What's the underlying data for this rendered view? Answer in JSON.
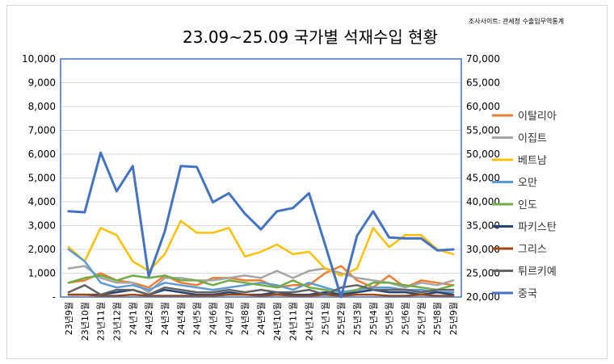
{
  "chart_data": {
    "type": "line",
    "title": "23.09~25.09 국가별 석재수입 현황",
    "source_note": "조사사이트: 관세청 수출입무역통계",
    "categories": [
      "23년9월",
      "23년10월",
      "23년11월",
      "23년12월",
      "24년1월",
      "24년2월",
      "24년3월",
      "24년4월",
      "24년5월",
      "24년6월",
      "24년7월",
      "24년8월",
      "24년9월",
      "24년10월",
      "24년11월",
      "24년12월",
      "25년1월",
      "25년2월",
      "25년3월",
      "25년4월",
      "25년5월",
      "25년6월",
      "25년7월",
      "25년8월",
      "25년9월"
    ],
    "y_left": {
      "min": 0,
      "max": 10000,
      "step": 1000,
      "ticks": [
        "-",
        "1,000",
        "2,000",
        "3,000",
        "4,000",
        "5,000",
        "6,000",
        "7,000",
        "8,000",
        "9,000",
        "10,000"
      ]
    },
    "y_right": {
      "min": 20000,
      "max": 70000,
      "step": 5000,
      "ticks": [
        "20,000",
        "25,000",
        "30,000",
        "35,000",
        "40,000",
        "45,000",
        "50,000",
        "55,000",
        "60,000",
        "65,000",
        "70,000"
      ]
    },
    "legend_position": "right",
    "series": [
      {
        "name": "이탈리아",
        "color": "#ED7D31",
        "axis": "left",
        "values": [
          600,
          700,
          1000,
          700,
          600,
          400,
          900,
          600,
          500,
          800,
          800,
          700,
          700,
          400,
          500,
          500,
          1000,
          1300,
          700,
          400,
          900,
          400,
          700,
          600,
          500
        ]
      },
      {
        "name": "이집트",
        "color": "#A5A5A5",
        "axis": "left",
        "values": [
          1200,
          1300,
          800,
          600,
          600,
          200,
          800,
          800,
          700,
          700,
          800,
          900,
          800,
          1100,
          800,
          1100,
          1200,
          1000,
          800,
          700,
          600,
          400,
          600,
          500,
          700
        ]
      },
      {
        "name": "베트남",
        "color": "#FFC000",
        "axis": "left",
        "values": [
          2100,
          1500,
          2900,
          2600,
          1500,
          1100,
          1800,
          3200,
          2700,
          2700,
          2900,
          1700,
          1900,
          2200,
          1800,
          1900,
          1200,
          900,
          1200,
          2900,
          2100,
          2600,
          2600,
          2000,
          1800
        ]
      },
      {
        "name": "오만",
        "color": "#5B9BD5",
        "axis": "left",
        "values": [
          2000,
          1500,
          600,
          400,
          500,
          300,
          600,
          500,
          400,
          300,
          400,
          500,
          600,
          500,
          300,
          600,
          400,
          200,
          300,
          400,
          400,
          300,
          300,
          200,
          200
        ]
      },
      {
        "name": "인도",
        "color": "#70AD47",
        "axis": "left",
        "values": [
          600,
          800,
          900,
          700,
          900,
          800,
          900,
          700,
          700,
          500,
          700,
          600,
          500,
          400,
          700,
          400,
          300,
          100,
          300,
          600,
          600,
          500,
          400,
          300,
          500
        ]
      },
      {
        "name": "파키스탄",
        "color": "#264478",
        "axis": "left",
        "values": [
          100,
          100,
          100,
          200,
          300,
          100,
          300,
          200,
          100,
          100,
          200,
          100,
          100,
          200,
          100,
          100,
          200,
          100,
          200,
          300,
          200,
          200,
          100,
          200,
          100
        ]
      },
      {
        "name": "그리스",
        "color": "#9E480E",
        "axis": "left",
        "values": [
          100,
          100,
          50,
          50,
          100,
          50,
          50,
          50,
          50,
          50,
          100,
          100,
          50,
          100,
          50,
          50,
          100,
          50,
          100,
          100,
          50,
          50,
          100,
          50,
          50
        ]
      },
      {
        "name": "튀르키예",
        "color": "#636363",
        "axis": "left",
        "values": [
          200,
          500,
          100,
          300,
          300,
          100,
          400,
          300,
          200,
          200,
          300,
          200,
          300,
          200,
          200,
          300,
          100,
          400,
          500,
          300,
          300,
          300,
          200,
          300,
          300
        ]
      },
      {
        "name": "중국",
        "color": "#4472C4",
        "axis": "right",
        "values": [
          38000,
          37800,
          50300,
          42200,
          47500,
          24300,
          33800,
          47500,
          47300,
          39900,
          41800,
          37500,
          34200,
          38000,
          38700,
          41800,
          31000,
          20000,
          32900,
          38000,
          32500,
          32300,
          32300,
          29800,
          30000
        ]
      }
    ]
  }
}
